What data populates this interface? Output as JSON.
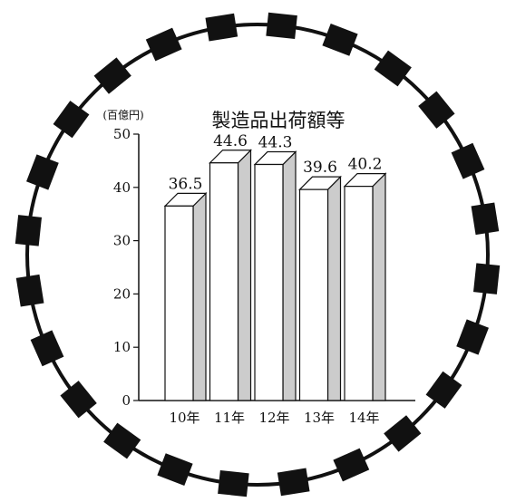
{
  "chart_data": {
    "type": "bar",
    "title": "製造品出荷額等",
    "ylabel": "(百億円)",
    "xlabel": "",
    "categories": [
      "10年",
      "11年",
      "12年",
      "13年",
      "14年"
    ],
    "values": [
      36.5,
      44.6,
      44.3,
      39.6,
      40.2
    ],
    "value_labels": [
      "36.5",
      "44.6",
      "44.3",
      "39.6",
      "40.2"
    ],
    "ylim": [
      0,
      50
    ],
    "yticks": [
      0,
      10,
      20,
      30,
      40,
      50
    ],
    "ytick_labels": [
      "0",
      "10",
      "20",
      "30",
      "40",
      "50"
    ],
    "grid": false,
    "legend": "none",
    "style": "3d-bar",
    "frame": "gear",
    "colors": {
      "bar_front": "#ffffff",
      "bar_side": "#cccccc",
      "bar_top": "#ffffff",
      "stroke": "#111111",
      "gear": "#111111"
    }
  }
}
